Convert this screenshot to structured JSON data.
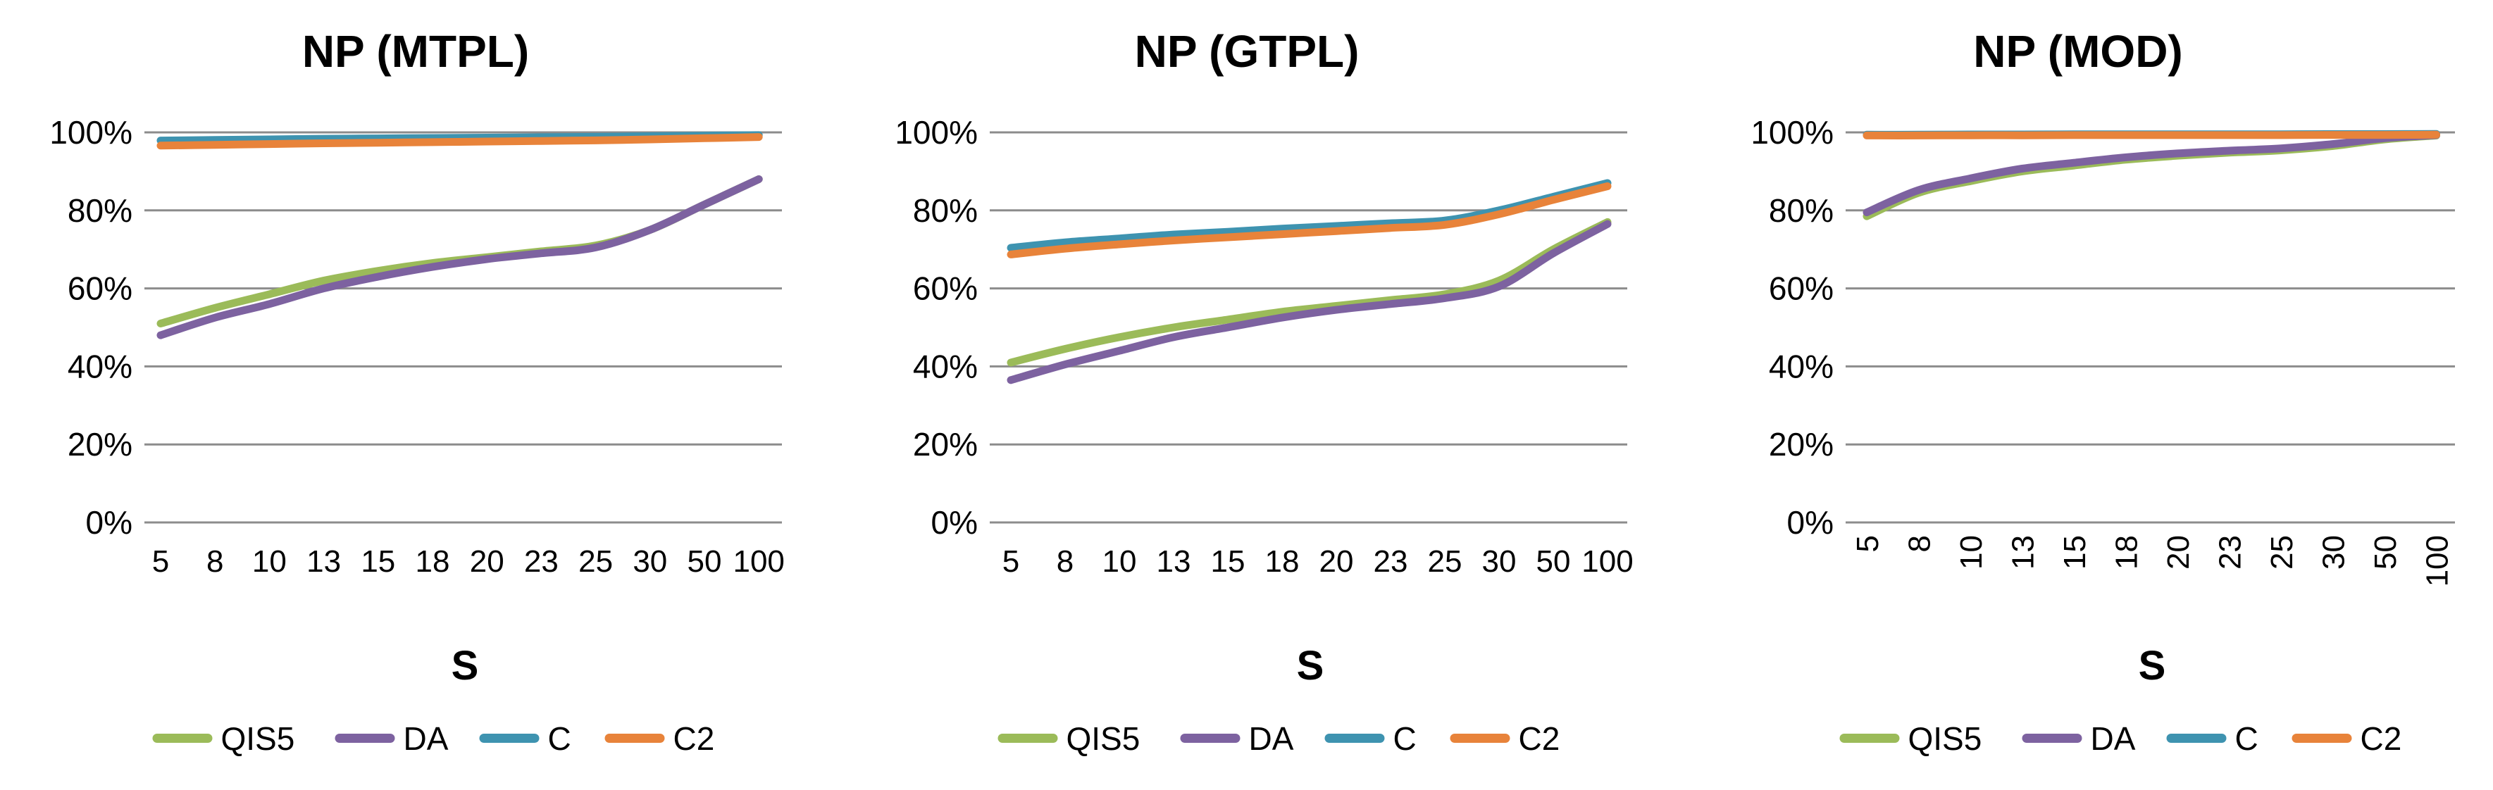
{
  "page": {
    "background": "#ffffff",
    "gridline_color": "#8C8C8C",
    "text_color": "#000000"
  },
  "chart_data": [
    {
      "type": "line",
      "title": "NP (MTPL)",
      "xlabel": "S",
      "ylabel": "",
      "ylim": [
        0,
        100
      ],
      "ytick_step": 20,
      "grid": "horizontal",
      "legend_position": "bottom",
      "smooth_lines": true,
      "rotated_x_labels": false,
      "categories": [
        "5",
        "8",
        "10",
        "13",
        "15",
        "18",
        "20",
        "23",
        "25",
        "30",
        "50",
        "100"
      ],
      "ytick_labels": [
        "0%",
        "20%",
        "40%",
        "60%",
        "80%",
        "100%"
      ],
      "series": [
        {
          "name": "QIS5",
          "color": "#9BBB59",
          "values": [
            51,
            55,
            58.5,
            62,
            64.5,
            66.5,
            68,
            69.5,
            71,
            75,
            81.5,
            88
          ]
        },
        {
          "name": "DA",
          "color": "#7D62A0",
          "values": [
            48,
            52.5,
            56,
            60,
            63,
            65.5,
            67.5,
            69,
            70.5,
            75,
            81.5,
            88
          ]
        },
        {
          "name": "C",
          "color": "#3E93B0",
          "values": [
            97.9,
            98.05,
            98.2,
            98.35,
            98.45,
            98.55,
            98.65,
            98.75,
            98.85,
            99.0,
            99.15,
            99.3
          ]
        },
        {
          "name": "C2",
          "color": "#E8833A",
          "values": [
            96.6,
            96.8,
            97.0,
            97.2,
            97.35,
            97.5,
            97.65,
            97.8,
            97.95,
            98.2,
            98.5,
            98.8
          ]
        }
      ]
    },
    {
      "type": "line",
      "title": "NP (GTPL)",
      "xlabel": "S",
      "ylabel": "",
      "ylim": [
        0,
        100
      ],
      "ytick_step": 20,
      "grid": "horizontal",
      "legend_position": "bottom",
      "smooth_lines": true,
      "rotated_x_labels": false,
      "categories": [
        "5",
        "8",
        "10",
        "13",
        "15",
        "18",
        "20",
        "23",
        "25",
        "30",
        "50",
        "100"
      ],
      "ytick_labels": [
        "0%",
        "20%",
        "40%",
        "60%",
        "80%",
        "100%"
      ],
      "series": [
        {
          "name": "QIS5",
          "color": "#9BBB59",
          "values": [
            41,
            44.5,
            47.5,
            50,
            52,
            54,
            55.5,
            57,
            58.5,
            62,
            70,
            77
          ]
        },
        {
          "name": "DA",
          "color": "#7D62A0",
          "values": [
            36.5,
            40.5,
            44,
            47.5,
            50,
            52.5,
            54.5,
            56,
            57.5,
            60.5,
            69,
            76.5
          ]
        },
        {
          "name": "C",
          "color": "#3E93B0",
          "values": [
            70.4,
            71.8,
            72.8,
            73.8,
            74.5,
            75.3,
            76.0,
            76.7,
            77.4,
            80.0,
            83.5,
            87.0
          ]
        },
        {
          "name": "C2",
          "color": "#E8833A",
          "values": [
            68.7,
            70.2,
            71.3,
            72.3,
            73.1,
            73.9,
            74.7,
            75.5,
            76.3,
            79.0,
            82.7,
            86.2
          ]
        }
      ]
    },
    {
      "type": "line",
      "title": "NP (MOD)",
      "xlabel": "S",
      "ylabel": "",
      "ylim": [
        0,
        100
      ],
      "ytick_step": 20,
      "grid": "horizontal",
      "legend_position": "bottom",
      "smooth_lines": true,
      "rotated_x_labels": true,
      "categories": [
        "5",
        "8",
        "10",
        "13",
        "15",
        "18",
        "20",
        "23",
        "25",
        "30",
        "50",
        "100"
      ],
      "ytick_labels": [
        "0%",
        "20%",
        "40%",
        "60%",
        "80%",
        "100%"
      ],
      "series": [
        {
          "name": "QIS5",
          "color": "#9BBB59",
          "values": [
            78.5,
            84.5,
            87.5,
            90,
            91.5,
            93,
            94,
            94.8,
            95.4,
            96.5,
            98.2,
            99.2
          ]
        },
        {
          "name": "DA",
          "color": "#7D62A0",
          "values": [
            79.5,
            85.2,
            88.2,
            90.7,
            92.2,
            93.6,
            94.6,
            95.3,
            95.9,
            97.0,
            98.5,
            99.3
          ]
        },
        {
          "name": "C",
          "color": "#3E93B0",
          "values": [
            99.4,
            99.4,
            99.45,
            99.45,
            99.5,
            99.5,
            99.5,
            99.5,
            99.5,
            99.55,
            99.55,
            99.6
          ]
        },
        {
          "name": "C2",
          "color": "#E8833A",
          "values": [
            99.2,
            99.2,
            99.25,
            99.25,
            99.3,
            99.3,
            99.3,
            99.3,
            99.3,
            99.35,
            99.35,
            99.4
          ]
        }
      ]
    }
  ]
}
